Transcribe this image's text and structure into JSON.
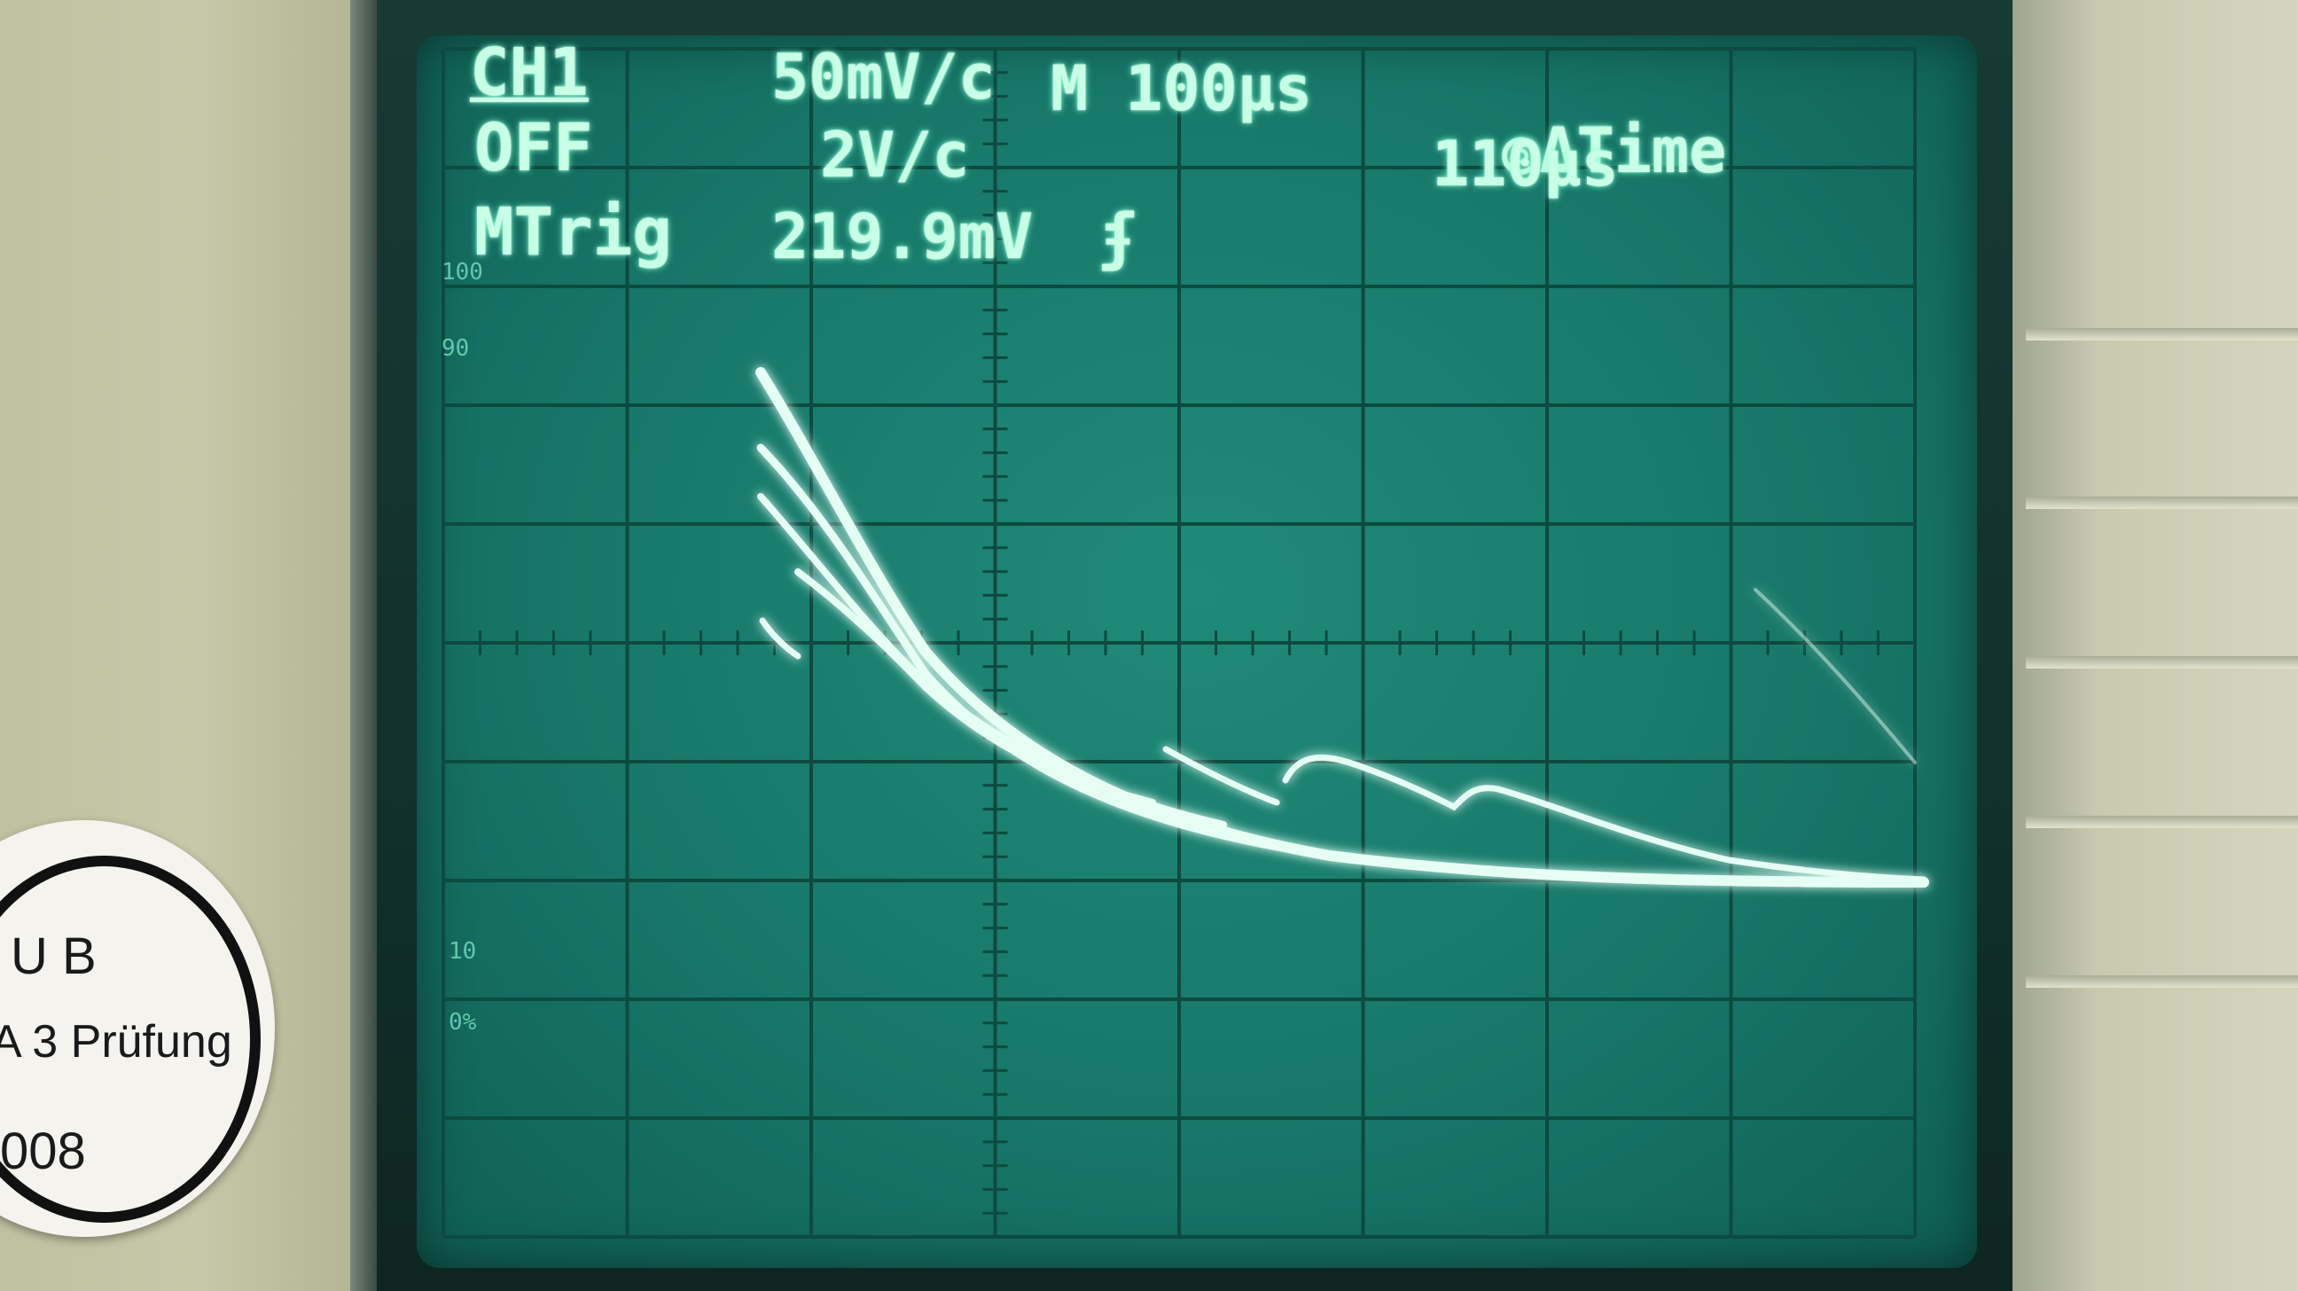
{
  "readouts": {
    "channel": "CH1",
    "coupling": "OFF",
    "volts_div": "50mV/c",
    "probe": "2V/c",
    "timebase": "M 100µs",
    "measure_mode": "ΔTime",
    "delta_time": "110µs",
    "trigger_label": "MTrig",
    "trigger_level": "219.9mV",
    "trigger_slope": "ʄ"
  },
  "graticule_marks": [
    "100",
    "90",
    "10",
    "0%"
  ],
  "sticker": {
    "line1": "U B",
    "line2": "A 3 Prüfung",
    "line3": "008"
  },
  "colors": {
    "phosphor": "#c8ffe6",
    "screen": "#177869",
    "grid": "#0d4a40"
  }
}
